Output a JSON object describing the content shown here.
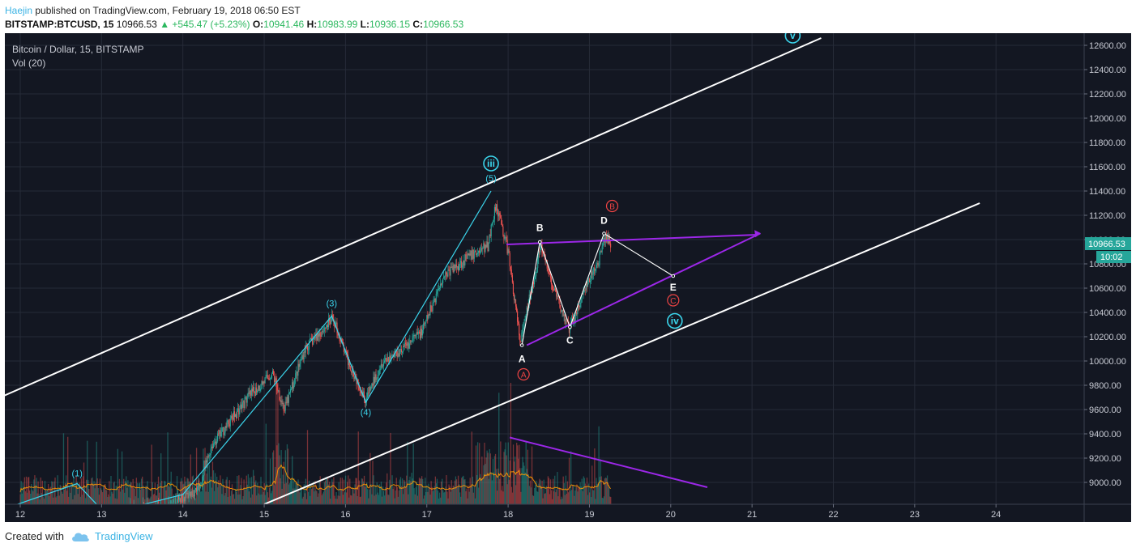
{
  "header": {
    "author": "Haejin",
    "published": " published on TradingView.com, February 19, 2018 06:50 EST"
  },
  "symbol": {
    "ticker": "BITSTAMP:BTCUSD, 15",
    "last": "10966.53",
    "change": "▲ +545.47 (+5.23%)",
    "o_label": "O:",
    "o": "10941.46",
    "h_label": "H:",
    "h": "10983.99",
    "l_label": "L:",
    "l": "10936.15",
    "c_label": "C:",
    "c": "10966.53"
  },
  "legend": {
    "title": "Bitcoin / Dollar, 15, BITSTAMP",
    "volume": "Vol (20)"
  },
  "price_badge": {
    "price": "10966.53",
    "countdown": "10:02"
  },
  "footer": {
    "created_with": "Created with",
    "brand": "TradingView"
  },
  "colors": {
    "background": "#131722",
    "grid": "#262b38",
    "up": "#26a69a",
    "down": "#ef5350",
    "wave_cyan": "#3bd5ec",
    "purple": "#9c27e8",
    "red_label": "#ef4444",
    "white": "#ffffff"
  },
  "chart_data": {
    "type": "candlestick",
    "x_ticks": [
      "12",
      "13",
      "14",
      "15",
      "16",
      "17",
      "18",
      "19",
      "20",
      "21",
      "22",
      "23",
      "24"
    ],
    "y_ticks": [
      "12600.00",
      "12400.00",
      "12200.00",
      "12000.00",
      "11800.00",
      "11600.00",
      "11400.00",
      "11200.00",
      "11000.00",
      "10800.00",
      "10600.00",
      "10400.00",
      "10200.00",
      "10000.00",
      "9800.00",
      "9600.00",
      "9400.00",
      "9200.00",
      "9000.00"
    ],
    "ylim": [
      8820,
      12700
    ],
    "price_path": [
      [
        12.5,
        8750
      ],
      [
        13.8,
        8800
      ],
      [
        14.2,
        8950
      ],
      [
        14.35,
        9300
      ],
      [
        14.8,
        9700
      ],
      [
        15.1,
        9900
      ],
      [
        15.25,
        9600
      ],
      [
        15.5,
        10100
      ],
      [
        15.85,
        10350
      ],
      [
        16.0,
        10050
      ],
      [
        16.25,
        9680
      ],
      [
        16.45,
        10000
      ],
      [
        16.7,
        10100
      ],
      [
        16.95,
        10250
      ],
      [
        17.2,
        10700
      ],
      [
        17.5,
        10850
      ],
      [
        17.75,
        10950
      ],
      [
        17.85,
        11300
      ],
      [
        18.0,
        10900
      ],
      [
        18.15,
        10150
      ],
      [
        18.4,
        10950
      ],
      [
        18.55,
        10600
      ],
      [
        18.75,
        10250
      ],
      [
        18.95,
        10600
      ],
      [
        19.1,
        10800
      ],
      [
        19.2,
        11020
      ],
      [
        19.27,
        10966
      ]
    ],
    "wave_labels": [
      {
        "label": "(1)",
        "x": 12.7,
        "y": 8990
      },
      {
        "label": "(3)",
        "x": 15.83,
        "y": 10370
      },
      {
        "label": "(4)",
        "x": 16.25,
        "y": 9660
      },
      {
        "label": "(5)",
        "x": 17.79,
        "y": 11400
      },
      {
        "label": "iii",
        "x": 17.79,
        "y": 11400
      },
      {
        "label": "iv",
        "x": 20.05,
        "y": 10330
      },
      {
        "label": "v",
        "x": 21.5,
        "y": 12700
      }
    ],
    "triangle_labels": [
      {
        "label": "A",
        "x": 18.17,
        "y": 10110
      },
      {
        "label": "B",
        "x": 18.39,
        "y": 10990
      },
      {
        "label": "C",
        "x": 18.76,
        "y": 10265
      },
      {
        "label": "D",
        "x": 19.18,
        "y": 11050
      },
      {
        "label": "E",
        "x": 20.03,
        "y": 10700
      }
    ],
    "abc_labels": [
      {
        "label": "A",
        "x": 18.17,
        "y": 10110
      },
      {
        "label": "B",
        "x": 19.22,
        "y": 11050
      },
      {
        "label": "C",
        "x": 20.03,
        "y": 10700
      }
    ],
    "lines": {
      "upper_channel": [
        [
          11.65,
          9670
        ],
        [
          21.85,
          12660
        ]
      ],
      "lower_channel": [
        [
          15.0,
          8820
        ],
        [
          23.8,
          11300
        ]
      ],
      "triangle_top": [
        [
          17.98,
          10960
        ],
        [
          21.07,
          11040
        ]
      ],
      "triangle_bottom": [
        [
          18.23,
          10130
        ],
        [
          21.1,
          11050
        ]
      ],
      "volume_trend": [
        [
          18.02,
          9370
        ],
        [
          20.45,
          8960
        ]
      ]
    }
  }
}
